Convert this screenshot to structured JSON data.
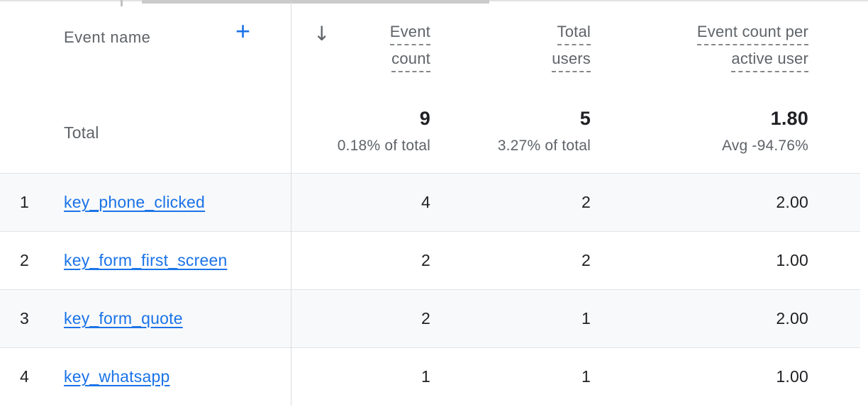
{
  "colors": {
    "accent_blue": "#1a73e8",
    "link": "#1a73e8",
    "header_text": "#5f6368",
    "value_text": "#202124",
    "zebra_row_bg": "#f8f9fa",
    "divider": "#dadce0"
  },
  "icons": {
    "add_column_icon": "+",
    "sort_descending_icon": "↓"
  },
  "table": {
    "dimension_column": {
      "header": "Event name"
    },
    "metric_columns": [
      {
        "id": "event_count",
        "label_lines": [
          "Event",
          "count"
        ]
      },
      {
        "id": "total_users",
        "label_lines": [
          "Total",
          "users"
        ]
      },
      {
        "id": "event_count_per_active_user",
        "label_lines": [
          "Event count per",
          "active user"
        ]
      }
    ],
    "totals_row": {
      "label": "Total",
      "metrics": [
        {
          "value": "9",
          "subtext": "0.18% of total"
        },
        {
          "value": "5",
          "subtext": "3.27% of total"
        },
        {
          "value": "1.80",
          "subtext": "Avg -94.76%"
        }
      ]
    },
    "rows": [
      {
        "index": "1",
        "event_name": "key_phone_clicked",
        "event_count": "4",
        "total_users": "2",
        "event_count_per_active_user": "2.00"
      },
      {
        "index": "2",
        "event_name": "key_form_first_screen",
        "event_count": "2",
        "total_users": "2",
        "event_count_per_active_user": "1.00"
      },
      {
        "index": "3",
        "event_name": "key_form_quote",
        "event_count": "2",
        "total_users": "1",
        "event_count_per_active_user": "2.00"
      },
      {
        "index": "4",
        "event_name": "key_whatsapp",
        "event_count": "1",
        "total_users": "1",
        "event_count_per_active_user": "1.00"
      }
    ]
  }
}
